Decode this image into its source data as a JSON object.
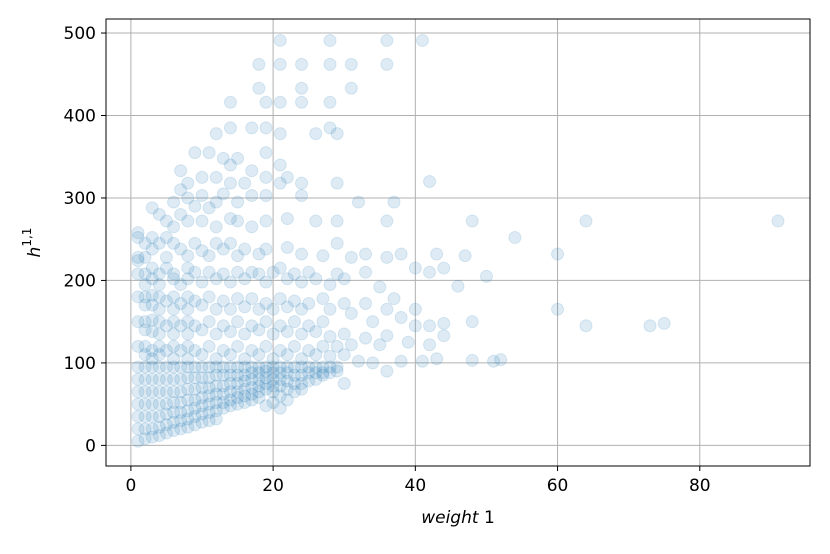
{
  "chart_data": {
    "type": "scatter",
    "title": "",
    "xlabel_italic": "weight",
    "xlabel_tail": " 1",
    "ylabel_base": "h",
    "ylabel_sup": "1,1",
    "xlim": [
      -3.5,
      95.5
    ],
    "ylim": [
      -25,
      517
    ],
    "xticks": [
      0,
      20,
      40,
      60,
      80
    ],
    "yticks": [
      0,
      100,
      200,
      300,
      400,
      500
    ],
    "grid": true,
    "marker_color": "#1f77b4",
    "marker_alpha": 0.15,
    "points": [
      [
        21,
        491
      ],
      [
        28,
        491
      ],
      [
        36,
        491
      ],
      [
        41,
        491
      ],
      [
        18,
        462
      ],
      [
        21,
        462
      ],
      [
        24,
        462
      ],
      [
        28,
        462
      ],
      [
        31,
        462
      ],
      [
        36,
        462
      ],
      [
        18,
        433
      ],
      [
        24,
        433
      ],
      [
        31,
        433
      ],
      [
        14,
        416
      ],
      [
        19,
        416
      ],
      [
        21,
        416
      ],
      [
        24,
        416
      ],
      [
        28,
        416
      ],
      [
        12,
        378
      ],
      [
        14,
        385
      ],
      [
        17,
        385
      ],
      [
        19,
        385
      ],
      [
        21,
        378
      ],
      [
        26,
        378
      ],
      [
        28,
        385
      ],
      [
        29,
        378
      ],
      [
        9,
        355
      ],
      [
        11,
        355
      ],
      [
        13,
        348
      ],
      [
        15,
        348
      ],
      [
        19,
        355
      ],
      [
        14,
        340
      ],
      [
        17,
        333
      ],
      [
        21,
        340
      ],
      [
        7,
        333
      ],
      [
        8,
        318
      ],
      [
        10,
        325
      ],
      [
        12,
        325
      ],
      [
        14,
        318
      ],
      [
        16,
        318
      ],
      [
        19,
        325
      ],
      [
        21,
        318
      ],
      [
        22,
        325
      ],
      [
        24,
        318
      ],
      [
        29,
        318
      ],
      [
        42,
        320
      ],
      [
        6,
        295
      ],
      [
        7,
        310
      ],
      [
        8,
        300
      ],
      [
        9,
        290
      ],
      [
        10,
        303
      ],
      [
        11,
        288
      ],
      [
        12,
        295
      ],
      [
        13,
        305
      ],
      [
        15,
        295
      ],
      [
        17,
        303
      ],
      [
        19,
        303
      ],
      [
        24,
        303
      ],
      [
        32,
        295
      ],
      [
        37,
        295
      ],
      [
        3,
        288
      ],
      [
        4,
        280
      ],
      [
        5,
        272
      ],
      [
        6,
        265
      ],
      [
        7,
        280
      ],
      [
        8,
        272
      ],
      [
        10,
        272
      ],
      [
        12,
        265
      ],
      [
        14,
        275
      ],
      [
        15,
        272
      ],
      [
        17,
        265
      ],
      [
        19,
        272
      ],
      [
        22,
        275
      ],
      [
        26,
        272
      ],
      [
        29,
        272
      ],
      [
        36,
        272
      ],
      [
        48,
        272
      ],
      [
        64,
        272
      ],
      [
        91,
        272
      ],
      [
        1,
        258
      ],
      [
        1,
        252
      ],
      [
        1,
        224
      ],
      [
        1,
        228
      ],
      [
        2,
        245
      ],
      [
        2,
        228
      ],
      [
        3,
        252
      ],
      [
        3,
        238
      ],
      [
        4,
        245
      ],
      [
        5,
        228
      ],
      [
        5,
        252
      ],
      [
        6,
        245
      ],
      [
        7,
        238
      ],
      [
        8,
        230
      ],
      [
        9,
        245
      ],
      [
        10,
        236
      ],
      [
        11,
        230
      ],
      [
        12,
        245
      ],
      [
        13,
        238
      ],
      [
        14,
        245
      ],
      [
        15,
        230
      ],
      [
        16,
        238
      ],
      [
        18,
        232
      ],
      [
        19,
        238
      ],
      [
        22,
        240
      ],
      [
        24,
        232
      ],
      [
        27,
        230
      ],
      [
        29,
        245
      ],
      [
        31,
        228
      ],
      [
        33,
        232
      ],
      [
        36,
        228
      ],
      [
        38,
        232
      ],
      [
        43,
        232
      ],
      [
        47,
        230
      ],
      [
        54,
        252
      ],
      [
        60,
        232
      ],
      [
        1,
        208
      ],
      [
        2,
        208
      ],
      [
        2,
        195
      ],
      [
        3,
        215
      ],
      [
        3,
        202
      ],
      [
        4,
        208
      ],
      [
        4,
        195
      ],
      [
        5,
        215
      ],
      [
        6,
        202
      ],
      [
        6,
        208
      ],
      [
        7,
        195
      ],
      [
        8,
        215
      ],
      [
        8,
        202
      ],
      [
        9,
        210
      ],
      [
        10,
        198
      ],
      [
        11,
        210
      ],
      [
        12,
        202
      ],
      [
        13,
        208
      ],
      [
        14,
        198
      ],
      [
        15,
        210
      ],
      [
        16,
        202
      ],
      [
        17,
        210
      ],
      [
        18,
        208
      ],
      [
        19,
        198
      ],
      [
        20,
        210
      ],
      [
        21,
        215
      ],
      [
        22,
        202
      ],
      [
        23,
        208
      ],
      [
        24,
        198
      ],
      [
        25,
        210
      ],
      [
        26,
        202
      ],
      [
        28,
        195
      ],
      [
        29,
        208
      ],
      [
        30,
        202
      ],
      [
        33,
        210
      ],
      [
        35,
        192
      ],
      [
        37,
        178
      ],
      [
        40,
        215
      ],
      [
        42,
        210
      ],
      [
        44,
        215
      ],
      [
        46,
        193
      ],
      [
        50,
        205
      ],
      [
        1,
        180
      ],
      [
        2,
        180
      ],
      [
        2,
        170
      ],
      [
        3,
        182
      ],
      [
        3,
        170
      ],
      [
        4,
        180
      ],
      [
        4,
        165
      ],
      [
        5,
        175
      ],
      [
        6,
        180
      ],
      [
        6,
        165
      ],
      [
        7,
        172
      ],
      [
        8,
        180
      ],
      [
        8,
        165
      ],
      [
        9,
        175
      ],
      [
        10,
        170
      ],
      [
        11,
        180
      ],
      [
        12,
        165
      ],
      [
        13,
        175
      ],
      [
        14,
        165
      ],
      [
        15,
        178
      ],
      [
        16,
        168
      ],
      [
        17,
        178
      ],
      [
        18,
        165
      ],
      [
        19,
        172
      ],
      [
        20,
        165
      ],
      [
        21,
        178
      ],
      [
        22,
        168
      ],
      [
        23,
        175
      ],
      [
        24,
        165
      ],
      [
        25,
        172
      ],
      [
        27,
        178
      ],
      [
        28,
        165
      ],
      [
        30,
        172
      ],
      [
        31,
        160
      ],
      [
        33,
        172
      ],
      [
        34,
        150
      ],
      [
        36,
        165
      ],
      [
        38,
        155
      ],
      [
        40,
        165
      ],
      [
        42,
        145
      ],
      [
        44,
        148
      ],
      [
        48,
        150
      ],
      [
        60,
        165
      ],
      [
        64,
        145
      ],
      [
        73,
        145
      ],
      [
        75,
        148
      ],
      [
        1,
        150
      ],
      [
        2,
        150
      ],
      [
        2,
        140
      ],
      [
        3,
        152
      ],
      [
        3,
        138
      ],
      [
        4,
        150
      ],
      [
        4,
        135
      ],
      [
        5,
        145
      ],
      [
        6,
        150
      ],
      [
        6,
        135
      ],
      [
        7,
        145
      ],
      [
        8,
        150
      ],
      [
        8,
        135
      ],
      [
        9,
        145
      ],
      [
        10,
        140
      ],
      [
        11,
        150
      ],
      [
        12,
        135
      ],
      [
        13,
        145
      ],
      [
        14,
        138
      ],
      [
        15,
        150
      ],
      [
        16,
        135
      ],
      [
        17,
        145
      ],
      [
        18,
        140
      ],
      [
        19,
        150
      ],
      [
        20,
        135
      ],
      [
        21,
        145
      ],
      [
        22,
        138
      ],
      [
        23,
        150
      ],
      [
        24,
        135
      ],
      [
        25,
        145
      ],
      [
        26,
        138
      ],
      [
        27,
        150
      ],
      [
        28,
        132
      ],
      [
        29,
        120
      ],
      [
        30,
        135
      ],
      [
        31,
        122
      ],
      [
        33,
        130
      ],
      [
        35,
        122
      ],
      [
        36,
        133
      ],
      [
        39,
        125
      ],
      [
        40,
        145
      ],
      [
        42,
        122
      ],
      [
        44,
        133
      ],
      [
        1,
        120
      ],
      [
        2,
        120
      ],
      [
        2,
        110
      ],
      [
        3,
        115
      ],
      [
        3,
        105
      ],
      [
        4,
        120
      ],
      [
        4,
        110
      ],
      [
        5,
        115
      ],
      [
        6,
        120
      ],
      [
        6,
        105
      ],
      [
        7,
        115
      ],
      [
        8,
        120
      ],
      [
        8,
        105
      ],
      [
        9,
        115
      ],
      [
        10,
        110
      ],
      [
        11,
        120
      ],
      [
        12,
        105
      ],
      [
        13,
        115
      ],
      [
        14,
        110
      ],
      [
        15,
        120
      ],
      [
        16,
        105
      ],
      [
        17,
        115
      ],
      [
        18,
        110
      ],
      [
        19,
        120
      ],
      [
        20,
        105
      ],
      [
        21,
        115
      ],
      [
        22,
        110
      ],
      [
        23,
        120
      ],
      [
        24,
        105
      ],
      [
        25,
        115
      ],
      [
        26,
        110
      ],
      [
        27,
        120
      ],
      [
        28,
        108
      ],
      [
        30,
        110
      ],
      [
        32,
        102
      ],
      [
        34,
        100
      ],
      [
        36,
        90
      ],
      [
        38,
        102
      ],
      [
        41,
        102
      ],
      [
        43,
        105
      ],
      [
        48,
        103
      ],
      [
        51,
        102
      ],
      [
        52,
        104
      ],
      [
        1,
        95
      ],
      [
        1,
        80
      ],
      [
        1,
        65
      ],
      [
        1,
        50
      ],
      [
        1,
        35
      ],
      [
        1,
        20
      ],
      [
        1,
        5
      ],
      [
        2,
        95
      ],
      [
        2,
        80
      ],
      [
        2,
        65
      ],
      [
        2,
        50
      ],
      [
        2,
        35
      ],
      [
        2,
        20
      ],
      [
        2,
        8
      ],
      [
        3,
        95
      ],
      [
        3,
        80
      ],
      [
        3,
        65
      ],
      [
        3,
        50
      ],
      [
        3,
        35
      ],
      [
        3,
        20
      ],
      [
        3,
        10
      ],
      [
        4,
        95
      ],
      [
        4,
        80
      ],
      [
        4,
        65
      ],
      [
        4,
        50
      ],
      [
        4,
        35
      ],
      [
        4,
        22
      ],
      [
        4,
        12
      ],
      [
        5,
        95
      ],
      [
        5,
        80
      ],
      [
        5,
        65
      ],
      [
        5,
        50
      ],
      [
        5,
        38
      ],
      [
        5,
        25
      ],
      [
        5,
        15
      ],
      [
        6,
        95
      ],
      [
        6,
        80
      ],
      [
        6,
        65
      ],
      [
        6,
        52
      ],
      [
        6,
        40
      ],
      [
        6,
        28
      ],
      [
        6,
        18
      ],
      [
        7,
        95
      ],
      [
        7,
        80
      ],
      [
        7,
        65
      ],
      [
        7,
        52
      ],
      [
        7,
        40
      ],
      [
        7,
        30
      ],
      [
        7,
        20
      ],
      [
        8,
        95
      ],
      [
        8,
        82
      ],
      [
        8,
        68
      ],
      [
        8,
        55
      ],
      [
        8,
        42
      ],
      [
        8,
        32
      ],
      [
        8,
        22
      ],
      [
        9,
        95
      ],
      [
        9,
        82
      ],
      [
        9,
        68
      ],
      [
        9,
        55
      ],
      [
        9,
        45
      ],
      [
        9,
        35
      ],
      [
        9,
        25
      ],
      [
        10,
        95
      ],
      [
        10,
        82
      ],
      [
        10,
        70
      ],
      [
        10,
        58
      ],
      [
        10,
        48
      ],
      [
        10,
        38
      ],
      [
        10,
        28
      ],
      [
        11,
        95
      ],
      [
        11,
        82
      ],
      [
        11,
        70
      ],
      [
        11,
        60
      ],
      [
        11,
        50
      ],
      [
        11,
        40
      ],
      [
        11,
        30
      ],
      [
        12,
        95
      ],
      [
        12,
        85
      ],
      [
        12,
        72
      ],
      [
        12,
        62
      ],
      [
        12,
        52
      ],
      [
        12,
        42
      ],
      [
        12,
        32
      ],
      [
        13,
        95
      ],
      [
        13,
        85
      ],
      [
        13,
        72
      ],
      [
        13,
        62
      ],
      [
        13,
        52
      ],
      [
        13,
        45
      ],
      [
        14,
        95
      ],
      [
        14,
        85
      ],
      [
        14,
        75
      ],
      [
        14,
        65
      ],
      [
        14,
        55
      ],
      [
        14,
        48
      ],
      [
        15,
        95
      ],
      [
        15,
        85
      ],
      [
        15,
        75
      ],
      [
        15,
        65
      ],
      [
        15,
        58
      ],
      [
        15,
        50
      ],
      [
        16,
        95
      ],
      [
        16,
        85
      ],
      [
        16,
        78
      ],
      [
        16,
        68
      ],
      [
        16,
        60
      ],
      [
        16,
        52
      ],
      [
        17,
        95
      ],
      [
        17,
        88
      ],
      [
        17,
        80
      ],
      [
        17,
        70
      ],
      [
        17,
        62
      ],
      [
        17,
        55
      ],
      [
        18,
        95
      ],
      [
        18,
        88
      ],
      [
        18,
        80
      ],
      [
        18,
        72
      ],
      [
        18,
        65
      ],
      [
        18,
        58
      ],
      [
        19,
        95
      ],
      [
        19,
        90
      ],
      [
        19,
        82
      ],
      [
        19,
        75
      ],
      [
        19,
        68
      ],
      [
        19,
        48
      ],
      [
        20,
        95
      ],
      [
        20,
        88
      ],
      [
        20,
        80
      ],
      [
        20,
        72
      ],
      [
        20,
        65
      ],
      [
        20,
        52
      ],
      [
        21,
        95
      ],
      [
        21,
        88
      ],
      [
        21,
        80
      ],
      [
        21,
        72
      ],
      [
        21,
        60
      ],
      [
        21,
        45
      ],
      [
        22,
        95
      ],
      [
        22,
        88
      ],
      [
        22,
        78
      ],
      [
        22,
        68
      ],
      [
        22,
        55
      ],
      [
        23,
        95
      ],
      [
        23,
        85
      ],
      [
        23,
        75
      ],
      [
        23,
        65
      ],
      [
        24,
        95
      ],
      [
        24,
        85
      ],
      [
        24,
        75
      ],
      [
        24,
        68
      ],
      [
        25,
        95
      ],
      [
        25,
        88
      ],
      [
        25,
        78
      ],
      [
        26,
        95
      ],
      [
        26,
        88
      ],
      [
        26,
        80
      ],
      [
        27,
        95
      ],
      [
        27,
        88
      ],
      [
        27,
        85
      ],
      [
        28,
        95
      ],
      [
        28,
        88
      ],
      [
        29,
        95
      ],
      [
        29,
        90
      ],
      [
        30,
        75
      ]
    ]
  }
}
